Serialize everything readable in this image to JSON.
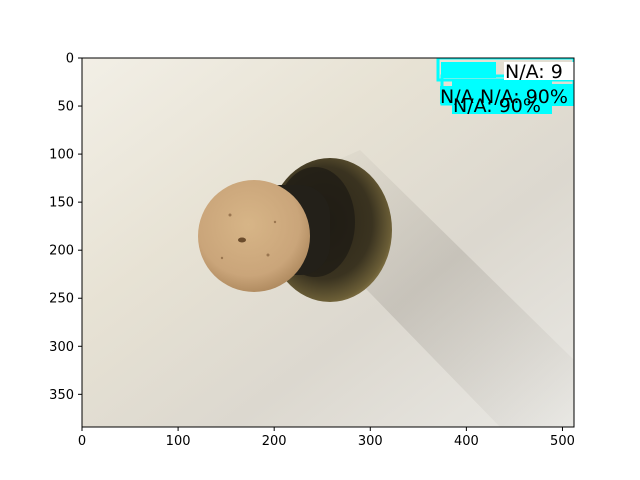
{
  "figure": {
    "image_extent": {
      "width": 512,
      "height": 384
    },
    "x_ticks": [
      0,
      100,
      200,
      300,
      400,
      500
    ],
    "y_ticks": [
      0,
      50,
      100,
      150,
      200,
      250,
      300,
      350
    ],
    "x_tick_labels": [
      "0",
      "100",
      "200",
      "300",
      "400",
      "500"
    ],
    "y_tick_labels": [
      "0",
      "50",
      "100",
      "150",
      "200",
      "250",
      "300",
      "350"
    ],
    "overlay_color": "#00ffff",
    "detections": [
      {
        "label": "N/A: 9",
        "note": "text truncated at image edge"
      },
      {
        "label": "N/A: 90%"
      },
      {
        "label": "N/A: 90%"
      },
      {
        "label": "N/A"
      }
    ]
  }
}
